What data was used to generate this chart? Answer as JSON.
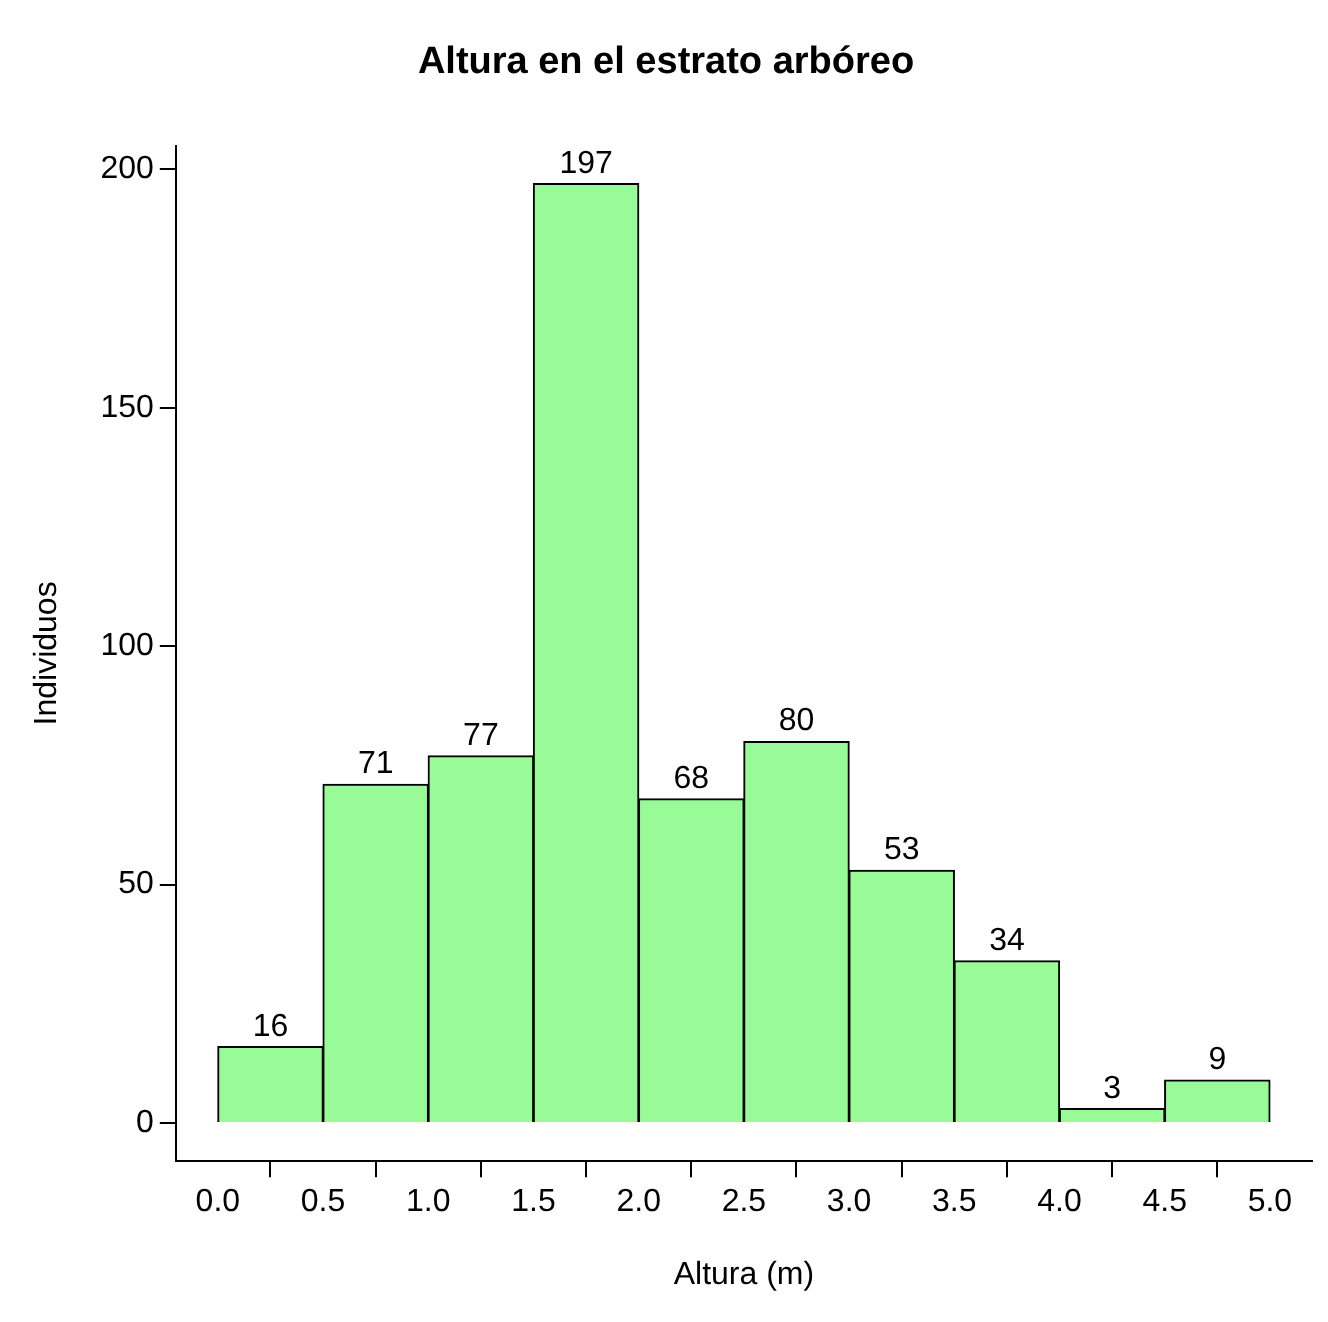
{
  "chart_data": {
    "type": "histogram",
    "title": "Altura en el estrato arbóreo",
    "xlabel": "Altura (m)",
    "ylabel": "Individuos",
    "bins": [
      0,
      0.5,
      1,
      1.5,
      2,
      2.5,
      3,
      3.5,
      4,
      4.5,
      5
    ],
    "values": [
      16,
      71,
      77,
      197,
      68,
      80,
      53,
      34,
      3,
      9
    ],
    "color": "#98fb98",
    "xlim": [
      -0.2,
      5.2
    ],
    "xticks": [
      {
        "value": 0,
        "label": "0.0"
      },
      {
        "value": 0.5,
        "label": "0.5"
      },
      {
        "value": 1,
        "label": "1.0"
      },
      {
        "value": 1.5,
        "label": "1.5"
      },
      {
        "value": 2,
        "label": "2.0"
      },
      {
        "value": 2.5,
        "label": "2.5"
      },
      {
        "value": 3,
        "label": "3.0"
      },
      {
        "value": 3.5,
        "label": "3.5"
      },
      {
        "value": 4,
        "label": "4.0"
      },
      {
        "value": 4.5,
        "label": "4.5"
      },
      {
        "value": 5,
        "label": "5.0"
      }
    ],
    "ylim": [
      -8,
      205
    ],
    "yticks": [
      0,
      50,
      100,
      150,
      200
    ],
    "grid": false,
    "legend": false,
    "data_labels": true
  }
}
